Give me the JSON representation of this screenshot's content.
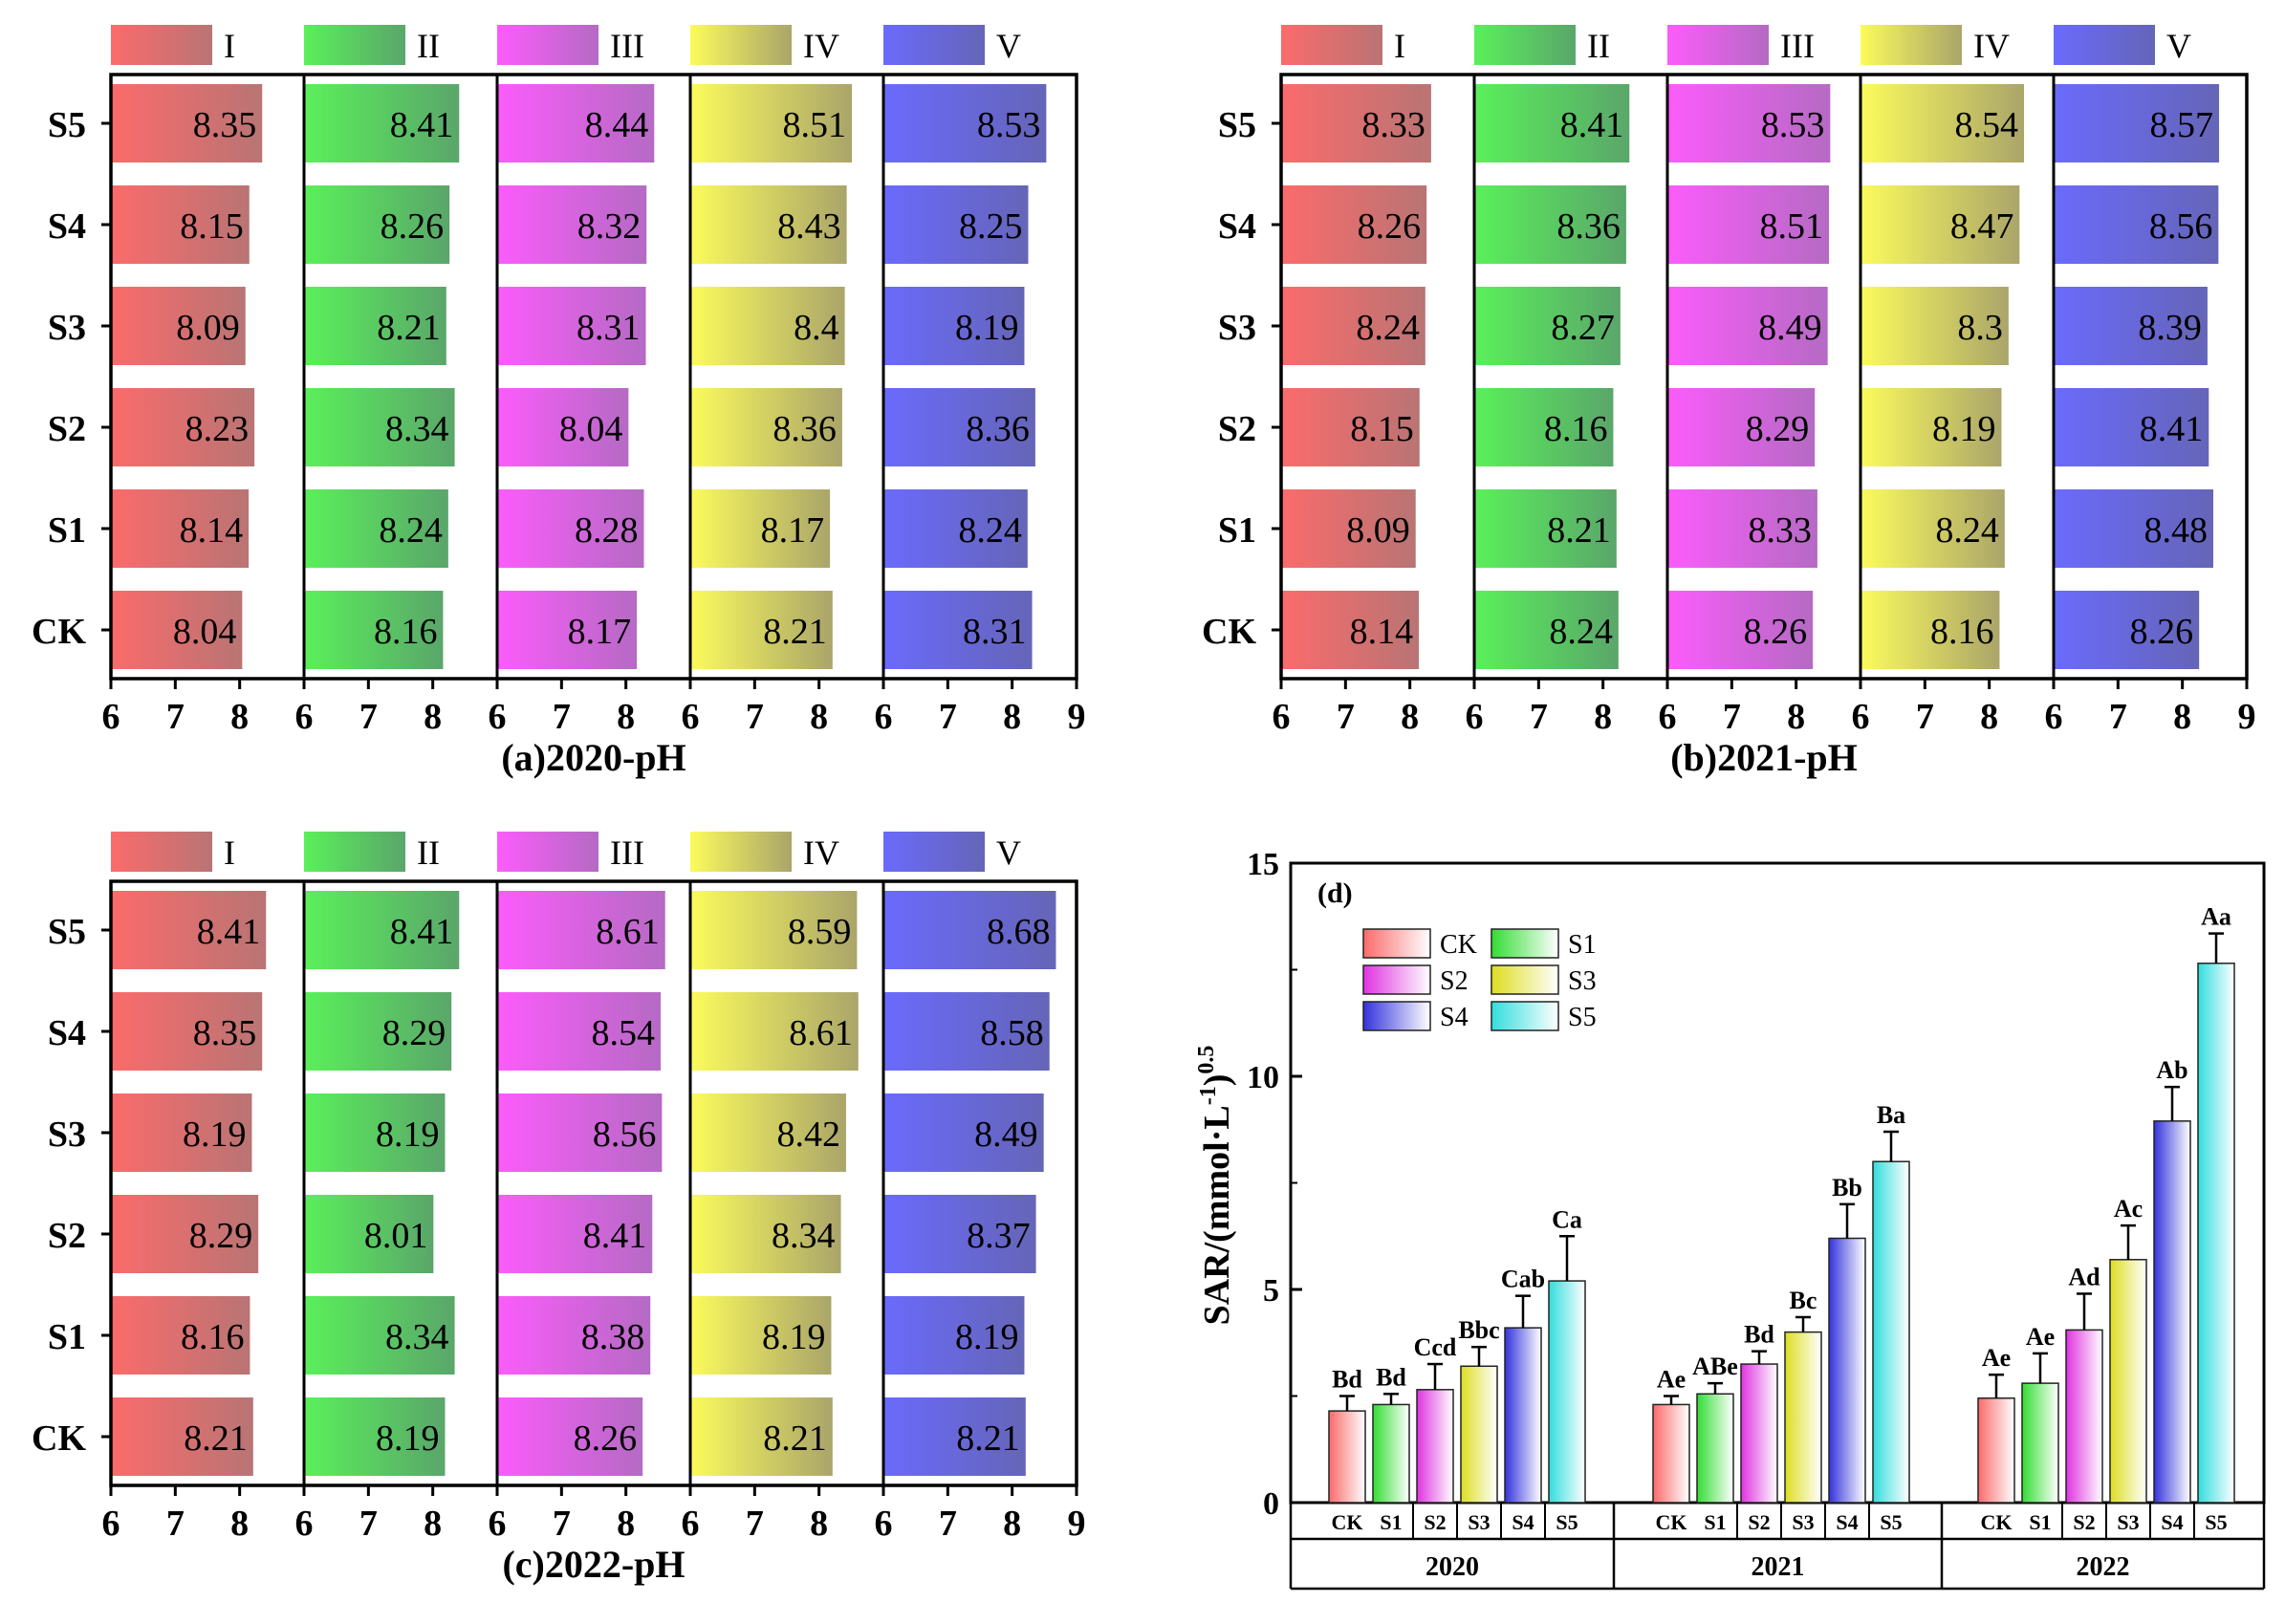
{
  "legend_levels": [
    "I",
    "II",
    "III",
    "IV",
    "V"
  ],
  "colors": {
    "I": [
      "#fb6b6b",
      "#b97474"
    ],
    "II": [
      "#5af05a",
      "#5aa66a"
    ],
    "III": [
      "#fb5cfb",
      "#b56ac4"
    ],
    "IV": [
      "#fbfb5c",
      "#aaa56a"
    ],
    "V": [
      "#6a6afc",
      "#6565b8"
    ],
    "CK": [
      "#fb6b6b",
      "#ffffff"
    ],
    "S1": [
      "#33dd33",
      "#ffffff"
    ],
    "S2": [
      "#e033e0",
      "#ffffff"
    ],
    "S3": [
      "#dddd22",
      "#ffffff"
    ],
    "S4": [
      "#3333dd",
      "#ffffff"
    ],
    "S5": [
      "#33dddd",
      "#ffffff"
    ]
  },
  "chart_data": [
    {
      "id": "a",
      "type": "bar",
      "title": "(a)2020-pH",
      "categories": [
        "S5",
        "S4",
        "S3",
        "S2",
        "S1",
        "CK"
      ],
      "xticks": [
        "6",
        "7",
        "8"
      ],
      "xticks_last": [
        "6",
        "7",
        "8",
        "9"
      ],
      "xlim": [
        6,
        9
      ],
      "series": [
        {
          "name": "I",
          "values": [
            8.35,
            8.15,
            8.09,
            8.23,
            8.14,
            8.04
          ],
          "labels": [
            "8.35",
            "8.15",
            "8.09",
            "8.23",
            "8.14",
            "8.04"
          ]
        },
        {
          "name": "II",
          "values": [
            8.41,
            8.26,
            8.21,
            8.34,
            8.24,
            8.16
          ],
          "labels": [
            "8.41",
            "8.26",
            "8.21",
            "8.34",
            "8.24",
            "8.16"
          ]
        },
        {
          "name": "III",
          "values": [
            8.44,
            8.32,
            8.31,
            8.04,
            8.28,
            8.17
          ],
          "labels": [
            "8.44",
            "8.32",
            "8.31",
            "8.04",
            "8.28",
            "8.17"
          ]
        },
        {
          "name": "IV",
          "values": [
            8.51,
            8.43,
            8.4,
            8.36,
            8.17,
            8.21
          ],
          "labels": [
            "8.51",
            "8.43",
            "8.4",
            "8.36",
            "8.17",
            "8.21"
          ]
        },
        {
          "name": "V",
          "values": [
            8.53,
            8.25,
            8.19,
            8.36,
            8.24,
            8.31
          ],
          "labels": [
            "8.53",
            "8.25",
            "8.19",
            "8.36",
            "8.24",
            "8.31"
          ]
        }
      ]
    },
    {
      "id": "b",
      "type": "bar",
      "title": "(b)2021-pH",
      "categories": [
        "S5",
        "S4",
        "S3",
        "S2",
        "S1",
        "CK"
      ],
      "xticks": [
        "6",
        "7",
        "8"
      ],
      "xticks_last": [
        "6",
        "7",
        "8",
        "9"
      ],
      "xlim": [
        6,
        9
      ],
      "series": [
        {
          "name": "I",
          "values": [
            8.33,
            8.26,
            8.24,
            8.15,
            8.09,
            8.14
          ],
          "labels": [
            "8.33",
            "8.26",
            "8.24",
            "8.15",
            "8.09",
            "8.14"
          ]
        },
        {
          "name": "II",
          "values": [
            8.41,
            8.36,
            8.27,
            8.16,
            8.21,
            8.24
          ],
          "labels": [
            "8.41",
            "8.36",
            "8.27",
            "8.16",
            "8.21",
            "8.24"
          ]
        },
        {
          "name": "III",
          "values": [
            8.53,
            8.51,
            8.49,
            8.29,
            8.33,
            8.26
          ],
          "labels": [
            "8.53",
            "8.51",
            "8.49",
            "8.29",
            "8.33",
            "8.26"
          ]
        },
        {
          "name": "IV",
          "values": [
            8.54,
            8.47,
            8.3,
            8.19,
            8.24,
            8.16
          ],
          "labels": [
            "8.54",
            "8.47",
            "8.3",
            "8.19",
            "8.24",
            "8.16"
          ]
        },
        {
          "name": "V",
          "values": [
            8.57,
            8.56,
            8.39,
            8.41,
            8.48,
            8.26
          ],
          "labels": [
            "8.57",
            "8.56",
            "8.39",
            "8.41",
            "8.48",
            "8.26"
          ]
        }
      ]
    },
    {
      "id": "c",
      "type": "bar",
      "title": "(c)2022-pH",
      "categories": [
        "S5",
        "S4",
        "S3",
        "S2",
        "S1",
        "CK"
      ],
      "xticks": [
        "6",
        "7",
        "8"
      ],
      "xticks_last": [
        "6",
        "7",
        "8",
        "9"
      ],
      "xlim": [
        6,
        9
      ],
      "series": [
        {
          "name": "I",
          "values": [
            8.41,
            8.35,
            8.19,
            8.29,
            8.16,
            8.21
          ],
          "labels": [
            "8.41",
            "8.35",
            "8.19",
            "8.29",
            "8.16",
            "8.21"
          ]
        },
        {
          "name": "II",
          "values": [
            8.41,
            8.29,
            8.19,
            8.01,
            8.34,
            8.19
          ],
          "labels": [
            "8.41",
            "8.29",
            "8.19",
            "8.01",
            "8.34",
            "8.19"
          ]
        },
        {
          "name": "III",
          "values": [
            8.61,
            8.54,
            8.56,
            8.41,
            8.38,
            8.26
          ],
          "labels": [
            "8.61",
            "8.54",
            "8.56",
            "8.41",
            "8.38",
            "8.26"
          ]
        },
        {
          "name": "IV",
          "values": [
            8.59,
            8.61,
            8.42,
            8.34,
            8.19,
            8.21
          ],
          "labels": [
            "8.59",
            "8.61",
            "8.42",
            "8.34",
            "8.19",
            "8.21"
          ]
        },
        {
          "name": "V",
          "values": [
            8.68,
            8.58,
            8.49,
            8.37,
            8.19,
            8.21
          ],
          "labels": [
            "8.68",
            "8.58",
            "8.49",
            "8.37",
            "8.19",
            "8.21"
          ]
        }
      ]
    },
    {
      "id": "d",
      "type": "bar",
      "panel_label": "(d)",
      "ylabel": "SAR/(mmol·L",
      "ylabel_sup1": "-1",
      "ylabel_mid": ")",
      "ylabel_sup2": "0.5",
      "ylim": [
        0,
        15
      ],
      "yticks": [
        "0",
        "5",
        "10",
        "15"
      ],
      "groups": [
        "2020",
        "2021",
        "2022"
      ],
      "categories": [
        "CK",
        "S1",
        "S2",
        "S3",
        "S4",
        "S5"
      ],
      "legend": [
        "CK",
        "S1",
        "S2",
        "S3",
        "S4",
        "S5"
      ],
      "series": [
        {
          "group": "2020",
          "values": [
            2.15,
            2.3,
            2.65,
            3.2,
            4.1,
            5.2
          ],
          "errors": [
            0.35,
            0.25,
            0.6,
            0.45,
            0.75,
            1.05
          ],
          "labels": [
            "Bd",
            "Bd",
            "Ccd",
            "Bbc",
            "Cab",
            "Ca"
          ]
        },
        {
          "group": "2021",
          "values": [
            2.3,
            2.55,
            3.25,
            4.0,
            6.2,
            8.0
          ],
          "errors": [
            0.2,
            0.25,
            0.3,
            0.35,
            0.8,
            0.7
          ],
          "labels": [
            "Ae",
            "ABe",
            "Bd",
            "Bc",
            "Bb",
            "Ba"
          ]
        },
        {
          "group": "2022",
          "values": [
            2.45,
            2.8,
            4.05,
            5.7,
            8.95,
            12.65
          ],
          "errors": [
            0.55,
            0.7,
            0.85,
            0.8,
            0.8,
            0.7
          ],
          "labels": [
            "Ae",
            "Ae",
            "Ad",
            "Ac",
            "Ab",
            "Aa"
          ]
        }
      ]
    }
  ]
}
